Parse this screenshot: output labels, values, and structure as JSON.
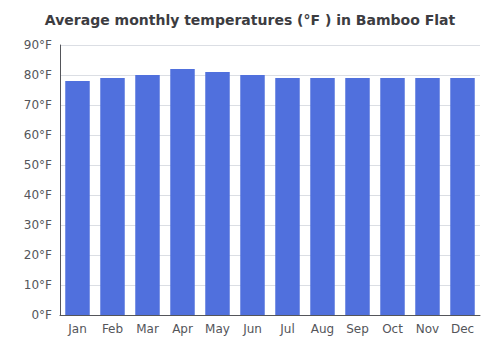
{
  "chart_data": {
    "type": "bar",
    "title": "Average monthly temperatures (°F ) in Bamboo Flat",
    "categories": [
      "Jan",
      "Feb",
      "Mar",
      "Apr",
      "May",
      "Jun",
      "Jul",
      "Aug",
      "Sep",
      "Oct",
      "Nov",
      "Dec"
    ],
    "values": [
      78,
      79,
      80,
      82,
      81,
      80,
      79,
      79,
      79,
      79,
      79,
      79
    ],
    "ylim": [
      0,
      90
    ],
    "yticks": [
      {
        "value": 0,
        "label": "0°F"
      },
      {
        "value": 10,
        "label": "10°F"
      },
      {
        "value": 20,
        "label": "20°F"
      },
      {
        "value": 30,
        "label": "30°F"
      },
      {
        "value": 40,
        "label": "40°F"
      },
      {
        "value": 50,
        "label": "50°F"
      },
      {
        "value": 60,
        "label": "60°F"
      },
      {
        "value": 70,
        "label": "70°F"
      },
      {
        "value": 80,
        "label": "80°F"
      },
      {
        "value": 90,
        "label": "90°F"
      }
    ],
    "grid": true
  }
}
